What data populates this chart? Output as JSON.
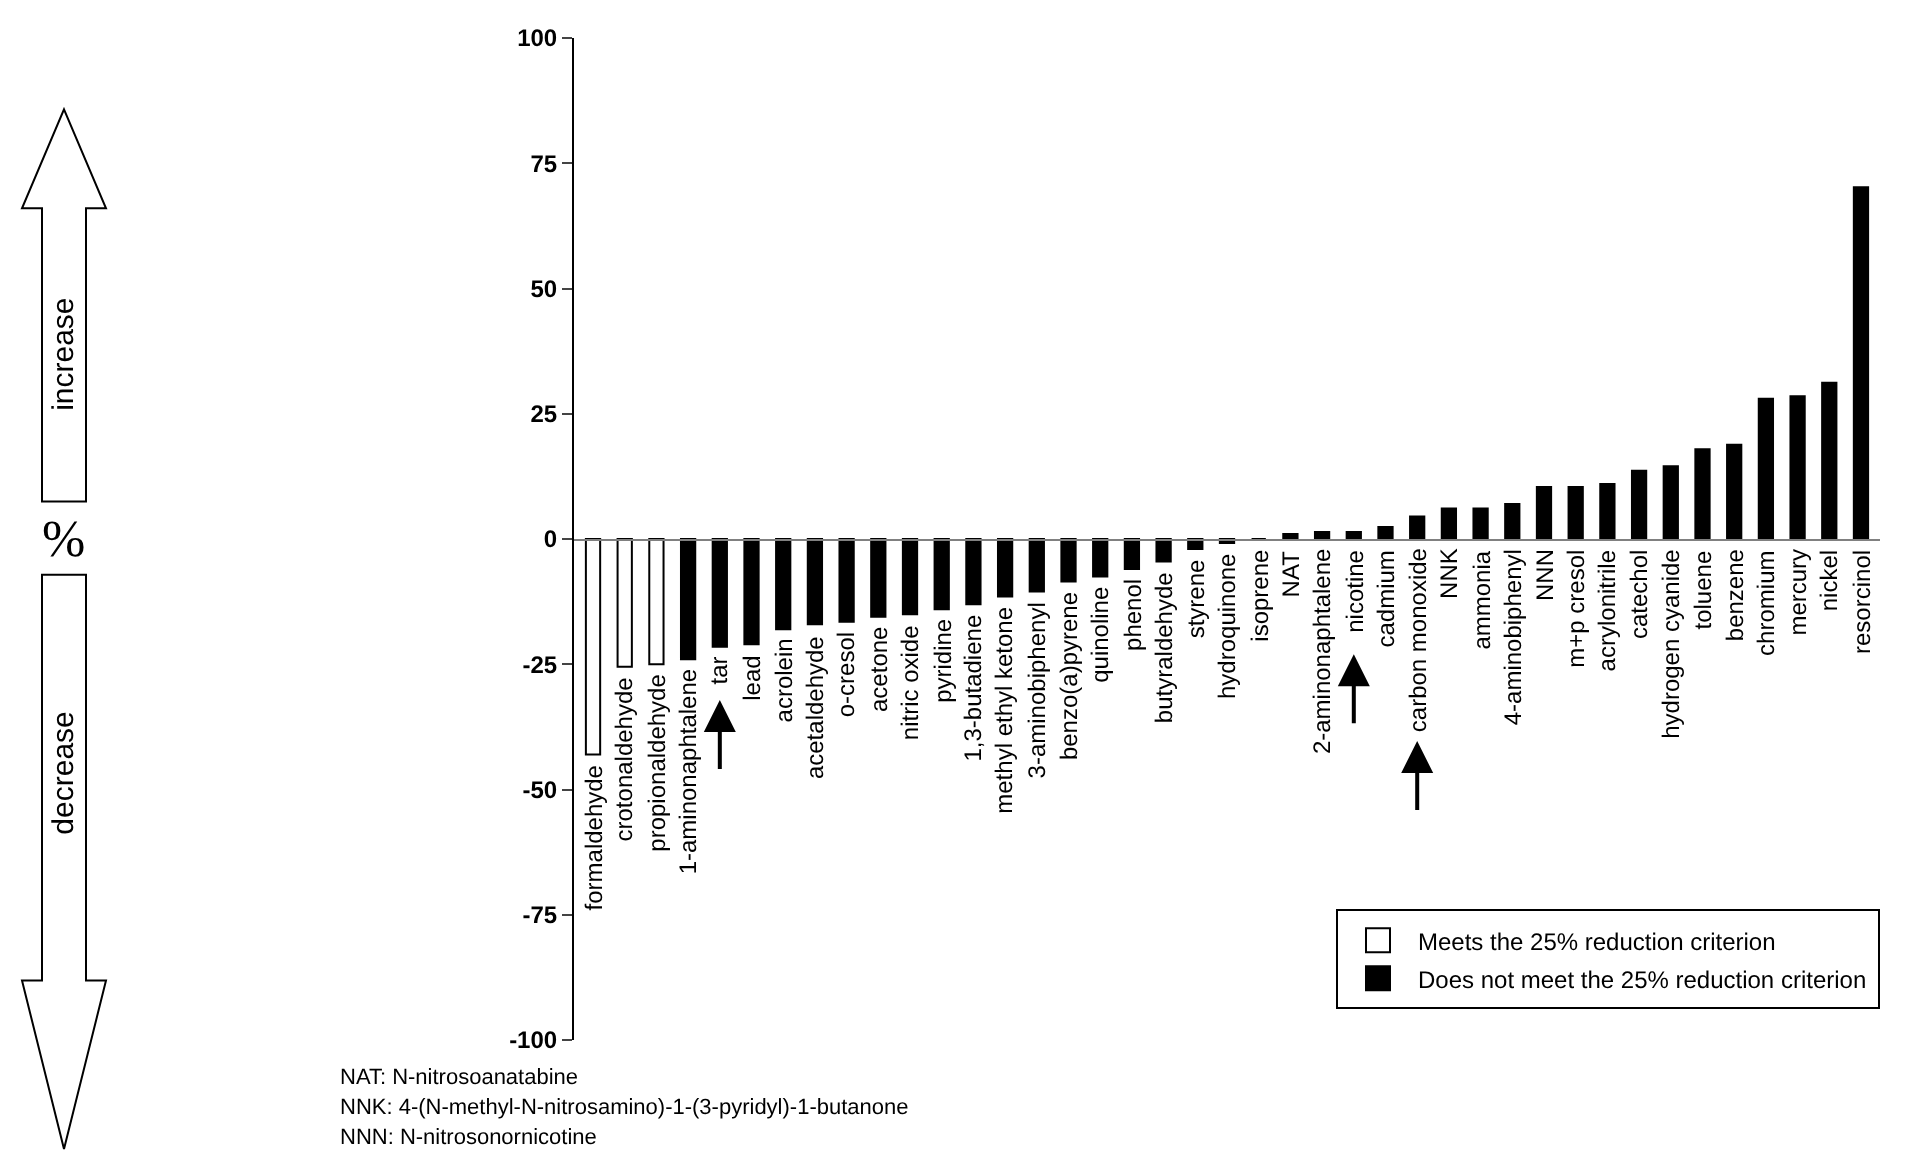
{
  "chart_data": {
    "type": "bar",
    "categories": [
      "formaldehyde",
      "crotonaldehyde",
      "propionaldehyde",
      "1-aminonaphtalene",
      "tar",
      "lead",
      "acrolein",
      "acetaldehyde",
      "o-cresol",
      "acetone",
      "nitric oxide",
      "pyridine",
      "1,3-butadiene",
      "methyl ethyl ketone",
      "3-aminobiphenyl",
      "benzo(a)pyrene",
      "quinoline",
      "phenol",
      "butyraldehyde",
      "styrene",
      "hydroquinone",
      "isoprene",
      "NAT",
      "2-aminonaphtalene",
      "nicotine",
      "cadmium",
      "carbon monoxide",
      "NNK",
      "ammonia",
      "4-aminobiphenyl",
      "NNN",
      "m+p cresol",
      "acrylonitrile",
      "catechol",
      "hydrogen cyanide",
      "toluene",
      "benzene",
      "chromium",
      "mercury",
      "nickel",
      "resorcinol"
    ],
    "series": [
      {
        "name": "Meets the 25% reduction criterion",
        "color": "#ffffff",
        "values": [
          -43,
          -25.5,
          -25,
          null,
          null,
          null,
          null,
          null,
          null,
          null,
          null,
          null,
          null,
          null,
          null,
          null,
          null,
          null,
          null,
          null,
          null,
          null,
          null,
          null,
          null,
          null,
          null,
          null,
          null,
          null,
          null,
          null,
          null,
          null,
          null,
          null,
          null,
          null,
          null,
          null,
          null
        ]
      },
      {
        "name": "Does not meet the 25% reduction criterion",
        "color": "#000000",
        "values": [
          null,
          null,
          null,
          -24,
          -21.5,
          -21,
          -18,
          -17,
          -16.5,
          -15.5,
          -15,
          -14,
          -13,
          -11.5,
          -10.5,
          -8.5,
          -7.5,
          -6,
          -4.5,
          -2,
          -0.8,
          0,
          1,
          1.4,
          1.4,
          2.4,
          4.5,
          6.1,
          6.1,
          7,
          10.4,
          10.4,
          11,
          13.6,
          14.5,
          17.9,
          18.8,
          28,
          28.5,
          31.2,
          70.2
        ]
      }
    ],
    "ylim": [
      -100,
      100
    ],
    "yticks": [
      -100,
      -75,
      -50,
      -25,
      0,
      25,
      50,
      75,
      100
    ],
    "legend": "bottom right",
    "annotations": [
      "increase",
      "decrease",
      "%",
      "NAT: N-nitrosoanatabine",
      "NNK: 4-(N-methyl-N-nitrosamino)-1-(3-pyridyl)-1-butanone",
      "NNN: N-nitrosonornicotine"
    ]
  }
}
